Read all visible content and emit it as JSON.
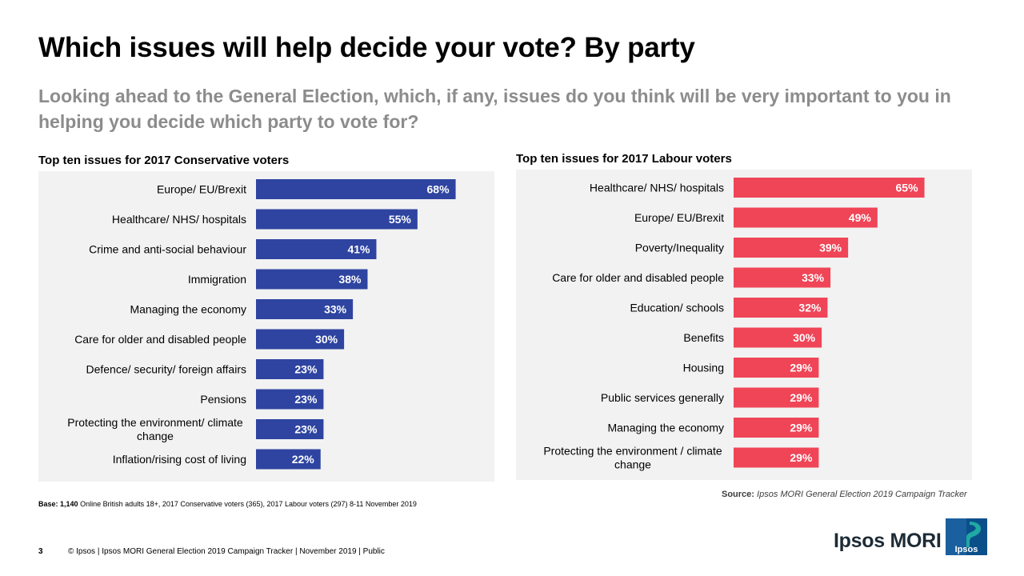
{
  "title": "Which issues will help decide your vote? By party",
  "subtitle": "Looking ahead to the General Election, which, if any, issues do you think will be very important to you in helping you decide which party to vote for?",
  "colors": {
    "conservative": "#2e44a0",
    "labour": "#ef4557",
    "panel": "#f2f2f2"
  },
  "chart_data": [
    {
      "type": "bar",
      "orientation": "horizontal",
      "title": "Top ten issues for 2017 Conservative voters",
      "categories": [
        "Europe/ EU/Brexit",
        "Healthcare/ NHS/ hospitals",
        "Crime and anti-social behaviour",
        "Immigration",
        "Managing the economy",
        "Care for older and disabled people",
        "Defence/ security/ foreign affairs",
        "Pensions",
        "Protecting the environment/ climate change",
        "Inflation/rising cost of living"
      ],
      "category_lines": [
        [
          "Europe/ EU/Brexit"
        ],
        [
          "Healthcare/ NHS/ hospitals"
        ],
        [
          "Crime and anti-social behaviour"
        ],
        [
          "Immigration"
        ],
        [
          "Managing the economy"
        ],
        [
          "Care for older and disabled people"
        ],
        [
          "Defence/ security/ foreign affairs"
        ],
        [
          "Pensions"
        ],
        [
          "Protecting the environment/ climate",
          "change"
        ],
        [
          "Inflation/rising cost of living"
        ]
      ],
      "values": [
        68,
        55,
        41,
        38,
        33,
        30,
        23,
        23,
        23,
        22
      ],
      "labels": [
        "68%",
        "55%",
        "41%",
        "38%",
        "33%",
        "30%",
        "23%",
        "23%",
        "23%",
        "22%"
      ],
      "unit": "%",
      "color": "#2e44a0"
    },
    {
      "type": "bar",
      "orientation": "horizontal",
      "title": "Top ten issues for 2017 Labour voters",
      "categories": [
        "Healthcare/ NHS/ hospitals",
        "Europe/ EU/Brexit",
        "Poverty/Inequality",
        "Care for older and disabled people",
        "Education/ schools",
        "Benefits",
        "Housing",
        "Public services generally",
        "Managing the economy",
        "Protecting the environment / climate change"
      ],
      "category_lines": [
        [
          "Healthcare/ NHS/ hospitals"
        ],
        [
          "Europe/ EU/Brexit"
        ],
        [
          "Poverty/Inequality"
        ],
        [
          "Care for older and disabled people"
        ],
        [
          "Education/ schools"
        ],
        [
          "Benefits"
        ],
        [
          "Housing"
        ],
        [
          "Public services generally"
        ],
        [
          "Managing the economy"
        ],
        [
          "Protecting the environment / climate",
          "change"
        ]
      ],
      "values": [
        65,
        49,
        39,
        33,
        32,
        30,
        29,
        29,
        29,
        29
      ],
      "labels": [
        "65%",
        "49%",
        "39%",
        "33%",
        "32%",
        "30%",
        "29%",
        "29%",
        "29%",
        "29%"
      ],
      "unit": "%",
      "color": "#ef4557"
    }
  ],
  "base": {
    "label": "Base:",
    "count": "1,140",
    "text": "Online British adults 18+,  2017 Conservative voters (365), 2017 Labour voters (297)  8-11 November 2019"
  },
  "source": {
    "label": "Source:",
    "text": "Ipsos MORI General Election 2019 Campaign Tracker"
  },
  "page_number": "3",
  "footer": "© Ipsos | Ipsos MORI  General Election 2019 Campaign  Tracker | November 2019 | Public",
  "brand": {
    "name": "Ipsos MORI",
    "logo_text": "Ipsos"
  }
}
